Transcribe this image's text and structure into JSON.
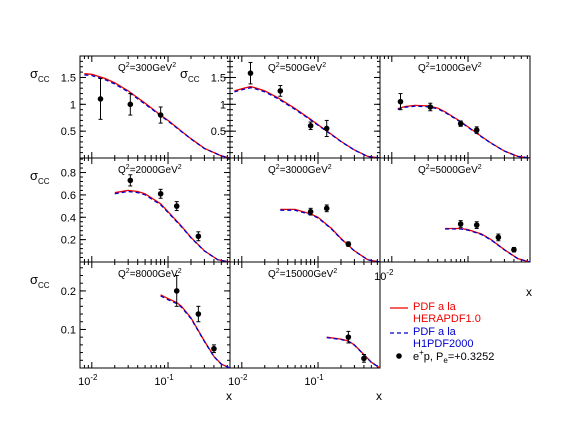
{
  "chart_data": {
    "type": "scatter",
    "xlabel": "x",
    "x_tick_labels": [
      "10",
      "-2",
      "10",
      "-1"
    ],
    "colors": {
      "herapdf": "#ee0000",
      "h1pdf": "#0000cc",
      "data": "#000000",
      "axis": "#000000"
    },
    "legend": {
      "placement": "bottom-right",
      "entries": [
        {
          "key": "herapdf",
          "lines": [
            "PDF a la",
            "HERAPDF1.0"
          ]
        },
        {
          "key": "h1pdf",
          "lines": [
            "PDF a la",
            "H1PDF2000"
          ]
        },
        {
          "key": "data",
          "prefix": "e",
          "prefix_sup": "+",
          "mid": "p, P",
          "sub": "e",
          "suffix": "=+0.3252"
        }
      ]
    },
    "panels": [
      {
        "id": "q2-300",
        "q2_label": "300GeV",
        "yaxis": "sigma_cc",
        "ylim": [
          0,
          1.9
        ],
        "yticks": [
          {
            "v": 0.5,
            "t": "0.5"
          },
          {
            "v": 1.0,
            "t": "1"
          },
          {
            "v": 1.5,
            "t": "1.5"
          }
        ],
        "curve_x": [
          0.008,
          0.01,
          0.015,
          0.02,
          0.03,
          0.05,
          0.08,
          0.1,
          0.15,
          0.2,
          0.3,
          0.5,
          0.65
        ],
        "curve_y": [
          1.57,
          1.56,
          1.48,
          1.4,
          1.25,
          1.02,
          0.8,
          0.7,
          0.5,
          0.36,
          0.18,
          0.04,
          0.0
        ],
        "points": [
          {
            "x": 0.013,
            "y": 1.1,
            "err": 0.38
          },
          {
            "x": 0.032,
            "y": 1.0,
            "err": 0.2
          },
          {
            "x": 0.08,
            "y": 0.8,
            "err": 0.15
          }
        ]
      },
      {
        "id": "q2-500",
        "q2_label": "500GeV",
        "yaxis": "sigma_cc",
        "ylim": [
          0,
          1.9
        ],
        "yticks": [
          {
            "v": 0.5,
            "t": "0.5"
          },
          {
            "v": 1.0,
            "t": "1"
          },
          {
            "v": 1.5,
            "t": "1.5"
          }
        ],
        "curve_x": [
          0.008,
          0.01,
          0.013,
          0.015,
          0.02,
          0.03,
          0.05,
          0.08,
          0.1,
          0.15,
          0.2,
          0.3,
          0.45,
          0.65
        ],
        "curve_y": [
          1.25,
          1.29,
          1.33,
          1.31,
          1.25,
          1.12,
          0.92,
          0.72,
          0.62,
          0.44,
          0.31,
          0.15,
          0.03,
          0.0
        ],
        "points": [
          {
            "x": 0.013,
            "y": 1.58,
            "err": 0.2
          },
          {
            "x": 0.032,
            "y": 1.25,
            "err": 0.1
          },
          {
            "x": 0.08,
            "y": 0.6,
            "err": 0.07
          },
          {
            "x": 0.13,
            "y": 0.55,
            "err": 0.15
          }
        ]
      },
      {
        "id": "q2-1000",
        "q2_label": "1000GeV",
        "yaxis": "none",
        "ylim": [
          0,
          1.9
        ],
        "yticks": [],
        "curve_x": [
          0.012,
          0.015,
          0.02,
          0.03,
          0.04,
          0.05,
          0.08,
          0.1,
          0.15,
          0.2,
          0.3,
          0.45,
          0.65
        ],
        "curve_y": [
          0.92,
          0.96,
          0.98,
          0.97,
          0.93,
          0.86,
          0.68,
          0.58,
          0.4,
          0.28,
          0.13,
          0.03,
          0.0
        ],
        "points": [
          {
            "x": 0.013,
            "y": 1.05,
            "err": 0.15
          },
          {
            "x": 0.032,
            "y": 0.95,
            "err": 0.07
          },
          {
            "x": 0.08,
            "y": 0.64,
            "err": 0.05
          },
          {
            "x": 0.13,
            "y": 0.52,
            "err": 0.06
          }
        ]
      },
      {
        "id": "q2-2000",
        "q2_label": "2000GeV",
        "yaxis": "sigma_cc",
        "ylim": [
          0,
          0.93
        ],
        "yticks": [
          {
            "v": 0.2,
            "t": "0.2"
          },
          {
            "v": 0.4,
            "t": "0.4"
          },
          {
            "v": 0.6,
            "t": "0.6"
          },
          {
            "v": 0.8,
            "t": "0.8"
          }
        ],
        "curve_x": [
          0.02,
          0.03,
          0.04,
          0.05,
          0.08,
          0.1,
          0.15,
          0.2,
          0.3,
          0.45,
          0.65
        ],
        "curve_y": [
          0.62,
          0.64,
          0.63,
          0.61,
          0.52,
          0.45,
          0.32,
          0.22,
          0.1,
          0.02,
          0.0
        ],
        "points": [
          {
            "x": 0.032,
            "y": 0.73,
            "err": 0.05
          },
          {
            "x": 0.08,
            "y": 0.61,
            "err": 0.04
          },
          {
            "x": 0.13,
            "y": 0.5,
            "err": 0.04
          },
          {
            "x": 0.25,
            "y": 0.23,
            "err": 0.04
          }
        ]
      },
      {
        "id": "q2-3000",
        "q2_label": "3000GeV",
        "yaxis": "none",
        "ylim": [
          0,
          0.93
        ],
        "yticks": [],
        "curve_x": [
          0.032,
          0.05,
          0.08,
          0.1,
          0.15,
          0.2,
          0.3,
          0.45,
          0.65
        ],
        "curve_y": [
          0.47,
          0.47,
          0.43,
          0.4,
          0.3,
          0.21,
          0.1,
          0.02,
          0.0
        ],
        "points": [
          {
            "x": 0.08,
            "y": 0.45,
            "err": 0.03
          },
          {
            "x": 0.13,
            "y": 0.48,
            "err": 0.03
          },
          {
            "x": 0.25,
            "y": 0.16,
            "err": 0.02
          }
        ]
      },
      {
        "id": "q2-5000",
        "q2_label": "5000GeV",
        "yaxis": "none",
        "ylim": [
          0,
          0.93
        ],
        "yticks": [],
        "curve_x": [
          0.05,
          0.08,
          0.1,
          0.15,
          0.2,
          0.3,
          0.45,
          0.65
        ],
        "curve_y": [
          0.3,
          0.3,
          0.29,
          0.25,
          0.2,
          0.11,
          0.03,
          0.0
        ],
        "points": [
          {
            "x": 0.08,
            "y": 0.34,
            "err": 0.03
          },
          {
            "x": 0.13,
            "y": 0.33,
            "err": 0.03
          },
          {
            "x": 0.25,
            "y": 0.22,
            "err": 0.03
          },
          {
            "x": 0.4,
            "y": 0.11,
            "err": 0.02
          }
        ]
      },
      {
        "id": "q2-8000",
        "q2_label": "8000GeV",
        "yaxis": "sigma_cc",
        "ylim": [
          0,
          0.275
        ],
        "yticks": [
          {
            "v": 0.1,
            "t": "0.1"
          },
          {
            "v": 0.2,
            "t": "0.2"
          }
        ],
        "curve_x": [
          0.08,
          0.1,
          0.13,
          0.15,
          0.2,
          0.3,
          0.4,
          0.5,
          0.65
        ],
        "curve_y": [
          0.19,
          0.18,
          0.17,
          0.16,
          0.13,
          0.07,
          0.03,
          0.01,
          0.0
        ],
        "points": [
          {
            "x": 0.13,
            "y": 0.2,
            "err": 0.04
          },
          {
            "x": 0.25,
            "y": 0.14,
            "err": 0.02
          },
          {
            "x": 0.4,
            "y": 0.05,
            "err": 0.01
          }
        ]
      },
      {
        "id": "q2-15000",
        "q2_label": "15000GeV",
        "yaxis": "none",
        "ylim": [
          0,
          0.275
        ],
        "yticks": [],
        "curve_x": [
          0.13,
          0.2,
          0.25,
          0.3,
          0.4,
          0.5,
          0.65
        ],
        "curve_y": [
          0.08,
          0.075,
          0.07,
          0.06,
          0.035,
          0.015,
          0.0
        ],
        "points": [
          {
            "x": 0.25,
            "y": 0.08,
            "err": 0.015
          },
          {
            "x": 0.4,
            "y": 0.025,
            "err": 0.01
          }
        ]
      }
    ]
  }
}
